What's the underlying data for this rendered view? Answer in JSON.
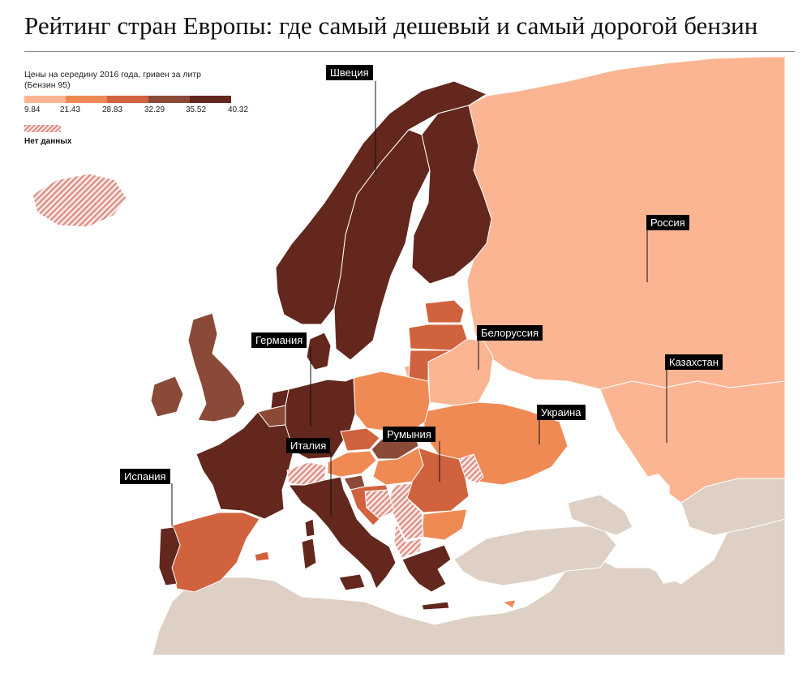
{
  "title": "Рейтинг стран Европы: где самый дешевый и самый дорогой бензин",
  "legend": {
    "caption_line1": "Цены на середину 2016 года, гривен за литр",
    "caption_line2": "(Бензин 95)",
    "ticks": [
      "9.84",
      "21.43",
      "28.83",
      "32.29",
      "35.52",
      "40.32"
    ],
    "colors": [
      "#fbb592",
      "#ef8a55",
      "#d0623e",
      "#8a4a37",
      "#63271d"
    ],
    "no_data_label": "Нет данных"
  },
  "colors": {
    "water": "#ffffff",
    "non_europe": "#ded0c4",
    "no_data_hatch": "#d98b84",
    "border": "#ffffff"
  },
  "labels": {
    "sweden": "Швеция",
    "russia": "Россия",
    "belarus": "Белоруссия",
    "germany": "Германия",
    "kazakhstan": "Казахстан",
    "ukraine": "Украина",
    "romania": "Румыния",
    "italy": "Италия",
    "spain": "Испания"
  }
}
